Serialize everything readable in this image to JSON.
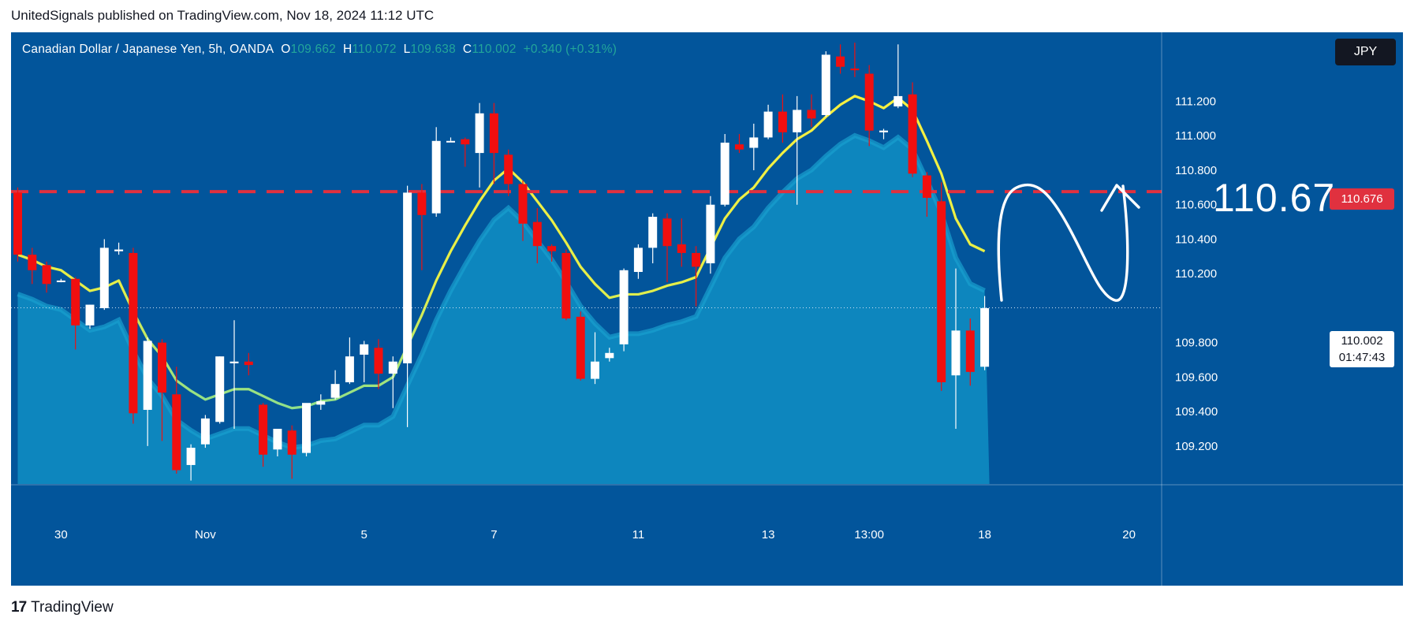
{
  "header": {
    "publisher": "UnitedSignals published on TradingView.com, Nov 18, 2024 11:12 UTC"
  },
  "legend": {
    "symbol": "Canadian Dollar / Japanese Yen, 5h, OANDA",
    "o_label": "O",
    "o_value": "109.662",
    "h_label": "H",
    "h_value": "110.072",
    "l_label": "L",
    "l_value": "109.638",
    "c_label": "C",
    "c_value": "110.002",
    "change": "+0.340 (+0.31%)"
  },
  "currency_badge": "JPY",
  "hline_label": "110.676",
  "price_label": "110.002",
  "countdown": "01:47:43",
  "annotation_text": "110.67",
  "footer": {
    "brand": "TradingView",
    "logo": "17"
  },
  "colors": {
    "background": "#02559b",
    "up": "#ffffff",
    "down": "#f10f0f",
    "hline": "#e0313f",
    "area": "#0e8cc2",
    "ma": "#f4ec3c"
  },
  "chart_data": {
    "type": "candlestick",
    "symbol": "Canadian Dollar / Japanese Yen",
    "interval": "5h",
    "ylim": [
      108.98,
      111.6
    ],
    "y_ticks": [
      "111.200",
      "111.000",
      "110.800",
      "110.600",
      "110.400",
      "110.200",
      "109.800",
      "109.600",
      "109.400",
      "109.200"
    ],
    "x_ticks": [
      "30",
      "Nov",
      "5",
      "7",
      "11",
      "13",
      "13:00",
      "18",
      "20"
    ],
    "horizontal_line": {
      "value": 110.676,
      "style": "dashed",
      "annotation": "110.67"
    },
    "current_price": 110.002,
    "candles": [
      {
        "o": 110.67,
        "h": 110.7,
        "l": 110.27,
        "c": 110.31
      },
      {
        "o": 110.31,
        "h": 110.35,
        "l": 110.14,
        "c": 110.22
      },
      {
        "o": 110.25,
        "h": 110.27,
        "l": 110.09,
        "c": 110.14
      },
      {
        "o": 110.16,
        "h": 110.17,
        "l": 110.15,
        "c": 110.16
      },
      {
        "o": 110.17,
        "h": 110.18,
        "l": 109.76,
        "c": 109.9
      },
      {
        "o": 109.9,
        "h": 110.02,
        "l": 109.88,
        "c": 110.02
      },
      {
        "o": 110.0,
        "h": 110.4,
        "l": 109.99,
        "c": 110.35
      },
      {
        "o": 110.33,
        "h": 110.38,
        "l": 110.31,
        "c": 110.34
      },
      {
        "o": 110.32,
        "h": 110.35,
        "l": 109.33,
        "c": 109.39
      },
      {
        "o": 109.41,
        "h": 109.83,
        "l": 109.2,
        "c": 109.81
      },
      {
        "o": 109.8,
        "h": 109.82,
        "l": 109.23,
        "c": 109.51
      },
      {
        "o": 109.5,
        "h": 109.66,
        "l": 109.04,
        "c": 109.06
      },
      {
        "o": 109.09,
        "h": 109.21,
        "l": 109.0,
        "c": 109.19
      },
      {
        "o": 109.21,
        "h": 109.38,
        "l": 109.19,
        "c": 109.36
      },
      {
        "o": 109.34,
        "h": 109.72,
        "l": 109.33,
        "c": 109.72
      },
      {
        "o": 109.68,
        "h": 109.93,
        "l": 109.3,
        "c": 109.69
      },
      {
        "o": 109.69,
        "h": 109.74,
        "l": 109.61,
        "c": 109.67
      },
      {
        "o": 109.44,
        "h": 109.45,
        "l": 109.08,
        "c": 109.15
      },
      {
        "o": 109.18,
        "h": 109.29,
        "l": 109.14,
        "c": 109.3
      },
      {
        "o": 109.29,
        "h": 109.32,
        "l": 109.01,
        "c": 109.15
      },
      {
        "o": 109.16,
        "h": 109.44,
        "l": 109.14,
        "c": 109.45
      },
      {
        "o": 109.44,
        "h": 109.5,
        "l": 109.41,
        "c": 109.46
      },
      {
        "o": 109.48,
        "h": 109.64,
        "l": 109.47,
        "c": 109.56
      },
      {
        "o": 109.57,
        "h": 109.83,
        "l": 109.56,
        "c": 109.72
      },
      {
        "o": 109.73,
        "h": 109.81,
        "l": 109.57,
        "c": 109.79
      },
      {
        "o": 109.77,
        "h": 109.82,
        "l": 109.53,
        "c": 109.62
      },
      {
        "o": 109.62,
        "h": 109.72,
        "l": 109.42,
        "c": 109.69
      },
      {
        "o": 109.68,
        "h": 110.71,
        "l": 109.31,
        "c": 110.67
      },
      {
        "o": 110.67,
        "h": 110.72,
        "l": 110.22,
        "c": 110.54
      },
      {
        "o": 110.55,
        "h": 111.05,
        "l": 110.53,
        "c": 110.97
      },
      {
        "o": 110.97,
        "h": 110.99,
        "l": 110.97,
        "c": 110.97
      },
      {
        "o": 110.98,
        "h": 110.99,
        "l": 110.82,
        "c": 110.95
      },
      {
        "o": 110.9,
        "h": 111.19,
        "l": 110.7,
        "c": 111.13
      },
      {
        "o": 111.13,
        "h": 111.19,
        "l": 110.72,
        "c": 110.9
      },
      {
        "o": 110.89,
        "h": 110.92,
        "l": 110.65,
        "c": 110.72
      },
      {
        "o": 110.72,
        "h": 110.74,
        "l": 110.39,
        "c": 110.49
      },
      {
        "o": 110.5,
        "h": 110.58,
        "l": 110.26,
        "c": 110.36
      },
      {
        "o": 110.36,
        "h": 110.37,
        "l": 110.27,
        "c": 110.33
      },
      {
        "o": 110.32,
        "h": 110.34,
        "l": 109.93,
        "c": 109.94
      },
      {
        "o": 109.95,
        "h": 109.98,
        "l": 109.58,
        "c": 109.59
      },
      {
        "o": 109.59,
        "h": 109.86,
        "l": 109.56,
        "c": 109.69
      },
      {
        "o": 109.71,
        "h": 109.77,
        "l": 109.69,
        "c": 109.74
      },
      {
        "o": 109.79,
        "h": 110.23,
        "l": 109.75,
        "c": 110.22
      },
      {
        "o": 110.21,
        "h": 110.37,
        "l": 110.17,
        "c": 110.35
      },
      {
        "o": 110.35,
        "h": 110.55,
        "l": 110.26,
        "c": 110.53
      },
      {
        "o": 110.52,
        "h": 110.55,
        "l": 110.15,
        "c": 110.36
      },
      {
        "o": 110.37,
        "h": 110.52,
        "l": 110.24,
        "c": 110.32
      },
      {
        "o": 110.32,
        "h": 110.36,
        "l": 110.01,
        "c": 110.24
      },
      {
        "o": 110.26,
        "h": 110.65,
        "l": 110.2,
        "c": 110.6
      },
      {
        "o": 110.6,
        "h": 111.01,
        "l": 110.59,
        "c": 110.96
      },
      {
        "o": 110.95,
        "h": 111.01,
        "l": 110.9,
        "c": 110.92
      },
      {
        "o": 110.93,
        "h": 111.07,
        "l": 110.8,
        "c": 110.99
      },
      {
        "o": 110.99,
        "h": 111.18,
        "l": 110.98,
        "c": 111.14
      },
      {
        "o": 111.14,
        "h": 111.24,
        "l": 110.96,
        "c": 111.02
      },
      {
        "o": 111.02,
        "h": 111.23,
        "l": 110.6,
        "c": 111.15
      },
      {
        "o": 111.15,
        "h": 111.24,
        "l": 111.05,
        "c": 111.1
      },
      {
        "o": 111.12,
        "h": 111.49,
        "l": 111.11,
        "c": 111.47
      },
      {
        "o": 111.46,
        "h": 111.53,
        "l": 111.36,
        "c": 111.4
      },
      {
        "o": 111.39,
        "h": 111.54,
        "l": 111.34,
        "c": 111.38
      },
      {
        "o": 111.36,
        "h": 111.41,
        "l": 110.94,
        "c": 111.03
      },
      {
        "o": 111.02,
        "h": 111.04,
        "l": 110.98,
        "c": 111.03
      },
      {
        "o": 111.17,
        "h": 111.53,
        "l": 111.16,
        "c": 111.23
      },
      {
        "o": 111.24,
        "h": 111.31,
        "l": 110.76,
        "c": 110.78
      },
      {
        "o": 110.77,
        "h": 110.79,
        "l": 110.53,
        "c": 110.64
      },
      {
        "o": 110.62,
        "h": 110.73,
        "l": 109.52,
        "c": 109.57
      },
      {
        "o": 109.61,
        "h": 110.23,
        "l": 109.3,
        "c": 109.87
      },
      {
        "o": 109.87,
        "h": 109.94,
        "l": 109.55,
        "c": 109.63
      },
      {
        "o": 109.66,
        "h": 110.07,
        "l": 109.64,
        "c": 110.0
      }
    ],
    "moving_average": [
      110.31,
      110.28,
      110.24,
      110.22,
      110.16,
      110.1,
      110.12,
      110.16,
      109.98,
      109.82,
      109.72,
      109.58,
      109.52,
      109.47,
      109.5,
      109.53,
      109.53,
      109.49,
      109.45,
      109.42,
      109.43,
      109.46,
      109.47,
      109.51,
      109.55,
      109.55,
      109.6,
      109.78,
      109.96,
      110.16,
      110.33,
      110.48,
      110.62,
      110.74,
      110.81,
      110.73,
      110.62,
      110.51,
      110.38,
      110.24,
      110.14,
      110.06,
      110.08,
      110.08,
      110.1,
      110.13,
      110.15,
      110.18,
      110.35,
      110.52,
      110.63,
      110.7,
      110.81,
      110.9,
      110.98,
      111.03,
      111.11,
      111.18,
      111.23,
      111.2,
      111.16,
      111.22,
      111.15,
      110.97,
      110.78,
      110.52,
      110.37,
      110.33
    ]
  }
}
